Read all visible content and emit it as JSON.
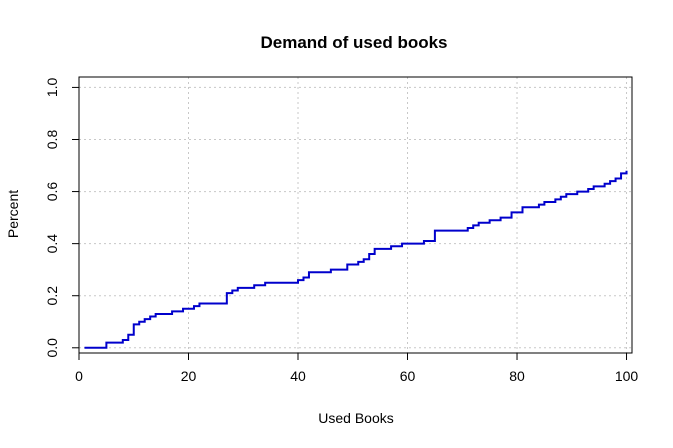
{
  "chart_data": {
    "type": "line",
    "title": "Demand of used books",
    "xlabel": "Used Books",
    "ylabel": "Percent",
    "xlim": [
      0,
      101
    ],
    "ylim": [
      -0.02,
      1.04
    ],
    "xticks": [
      "0",
      "20",
      "40",
      "60",
      "80",
      "100"
    ],
    "yticks": [
      "0.0",
      "0.2",
      "0.4",
      "0.6",
      "0.8",
      "1.0"
    ],
    "grid": true,
    "line_color": "#0000cc",
    "x": [
      1,
      2,
      3,
      4,
      5,
      6,
      7,
      8,
      9,
      10,
      11,
      12,
      13,
      14,
      15,
      16,
      17,
      18,
      19,
      20,
      21,
      22,
      23,
      24,
      25,
      26,
      27,
      28,
      29,
      30,
      31,
      32,
      33,
      34,
      35,
      36,
      37,
      38,
      39,
      40,
      41,
      42,
      43,
      44,
      45,
      46,
      47,
      48,
      49,
      50,
      51,
      52,
      53,
      54,
      55,
      56,
      57,
      58,
      59,
      60,
      61,
      62,
      63,
      64,
      65,
      66,
      67,
      68,
      69,
      70,
      71,
      72,
      73,
      74,
      75,
      76,
      77,
      78,
      79,
      80,
      81,
      82,
      83,
      84,
      85,
      86,
      87,
      88,
      89,
      90,
      91,
      92,
      93,
      94,
      95,
      96,
      97,
      98,
      99,
      100
    ],
    "values": [
      0.0,
      0.0,
      0.0,
      0.0,
      0.02,
      0.02,
      0.02,
      0.03,
      0.05,
      0.09,
      0.1,
      0.11,
      0.12,
      0.13,
      0.13,
      0.13,
      0.14,
      0.14,
      0.15,
      0.15,
      0.16,
      0.17,
      0.17,
      0.17,
      0.17,
      0.17,
      0.21,
      0.22,
      0.23,
      0.23,
      0.23,
      0.24,
      0.24,
      0.25,
      0.25,
      0.25,
      0.25,
      0.25,
      0.25,
      0.26,
      0.27,
      0.29,
      0.29,
      0.29,
      0.29,
      0.3,
      0.3,
      0.3,
      0.32,
      0.32,
      0.33,
      0.34,
      0.36,
      0.38,
      0.38,
      0.38,
      0.39,
      0.39,
      0.4,
      0.4,
      0.4,
      0.4,
      0.41,
      0.41,
      0.45,
      0.45,
      0.45,
      0.45,
      0.45,
      0.45,
      0.46,
      0.47,
      0.48,
      0.48,
      0.49,
      0.49,
      0.5,
      0.5,
      0.52,
      0.52,
      0.54,
      0.54,
      0.54,
      0.55,
      0.56,
      0.56,
      0.57,
      0.58,
      0.59,
      0.59,
      0.6,
      0.6,
      0.61,
      0.62,
      0.62,
      0.63,
      0.64,
      0.65,
      0.67,
      0.68
    ]
  }
}
